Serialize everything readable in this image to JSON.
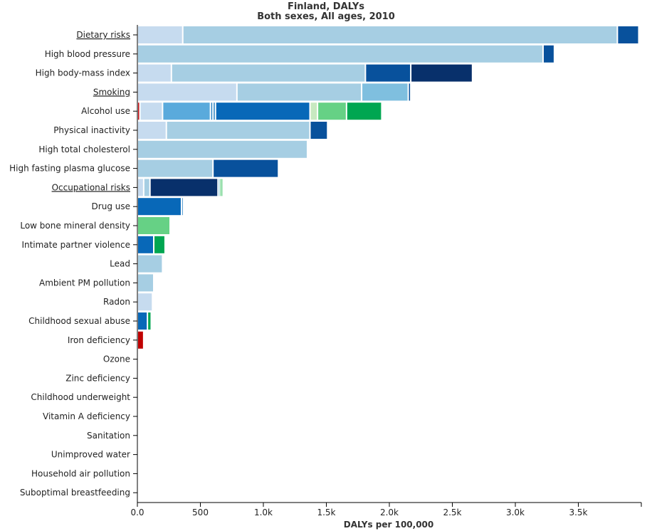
{
  "chart_data": {
    "type": "bar",
    "orientation": "horizontal",
    "stacked": true,
    "title": "Finland, DALYs",
    "subtitle": "Both sexes, All ages, 2010",
    "xlabel": "DALYs per 100,000",
    "xlim": [
      0,
      4000
    ],
    "xticks": [
      "0.0",
      "500",
      "1.0k",
      "1.5k",
      "2.0k",
      "2.5k",
      "3.0k",
      "3.5k"
    ],
    "grid": false,
    "legend": "none",
    "categories": [
      {
        "label": "Dietary risks",
        "link": true,
        "segments": [
          [
            360,
            "#c6dbef"
          ],
          [
            3450,
            "#a6cee3"
          ],
          [
            170,
            "#08519c"
          ]
        ]
      },
      {
        "label": "High blood pressure",
        "link": false,
        "segments": [
          [
            3220,
            "#a6cee3"
          ],
          [
            90,
            "#08519c"
          ]
        ]
      },
      {
        "label": "High body-mass index",
        "link": false,
        "segments": [
          [
            270,
            "#c6dbef"
          ],
          [
            1540,
            "#a6cee3"
          ],
          [
            360,
            "#08519c"
          ],
          [
            490,
            "#08306b"
          ]
        ]
      },
      {
        "label": "Smoking",
        "link": true,
        "segments": [
          [
            790,
            "#c6dbef"
          ],
          [
            990,
            "#a6cee3"
          ],
          [
            370,
            "#7fbfdf"
          ],
          [
            20,
            "#08519c"
          ]
        ]
      },
      {
        "label": "Alcohol use",
        "link": false,
        "segments": [
          [
            20,
            "#cb181d"
          ],
          [
            180,
            "#c6dbef"
          ],
          [
            380,
            "#5aaadc"
          ],
          [
            20,
            "#2b83c3"
          ],
          [
            20,
            "#2b83c3"
          ],
          [
            750,
            "#0868b8"
          ],
          [
            60,
            "#c7e9c0"
          ],
          [
            230,
            "#66d185"
          ],
          [
            280,
            "#00a651"
          ]
        ]
      },
      {
        "label": "Physical inactivity",
        "link": false,
        "segments": [
          [
            230,
            "#c6dbef"
          ],
          [
            1140,
            "#a6cee3"
          ],
          [
            140,
            "#08519c"
          ]
        ]
      },
      {
        "label": "High total cholesterol",
        "link": false,
        "segments": [
          [
            1350,
            "#a6cee3"
          ]
        ]
      },
      {
        "label": "High fasting plasma glucose",
        "link": false,
        "segments": [
          [
            600,
            "#a6cee3"
          ],
          [
            520,
            "#08519c"
          ]
        ]
      },
      {
        "label": "Occupational risks",
        "link": true,
        "segments": [
          [
            50,
            "#c6dbef"
          ],
          [
            50,
            "#a6cee3"
          ],
          [
            540,
            "#08306b"
          ],
          [
            10,
            "#7fbfdf"
          ],
          [
            10,
            "#66d185"
          ],
          [
            20,
            "#66d185"
          ]
        ]
      },
      {
        "label": "Drug use",
        "link": false,
        "segments": [
          [
            350,
            "#0868b8"
          ],
          [
            10,
            "#2b83c3"
          ]
        ]
      },
      {
        "label": "Low bone mineral density",
        "link": false,
        "segments": [
          [
            260,
            "#66d185"
          ]
        ]
      },
      {
        "label": "Intimate partner violence",
        "link": false,
        "segments": [
          [
            130,
            "#0868b8"
          ],
          [
            90,
            "#00a651"
          ]
        ]
      },
      {
        "label": "Lead",
        "link": false,
        "segments": [
          [
            200,
            "#a6cee3"
          ]
        ]
      },
      {
        "label": "Ambient PM pollution",
        "link": false,
        "segments": [
          [
            130,
            "#a6cee3"
          ]
        ]
      },
      {
        "label": "Radon",
        "link": false,
        "segments": [
          [
            120,
            "#c6dbef"
          ]
        ]
      },
      {
        "label": "Childhood sexual abuse",
        "link": false,
        "segments": [
          [
            80,
            "#0868b8"
          ],
          [
            30,
            "#00a651"
          ]
        ]
      },
      {
        "label": "Iron deficiency",
        "link": false,
        "segments": [
          [
            50,
            "#c00000"
          ]
        ]
      },
      {
        "label": "Ozone",
        "link": false,
        "segments": []
      },
      {
        "label": "Zinc deficiency",
        "link": false,
        "segments": []
      },
      {
        "label": "Childhood underweight",
        "link": false,
        "segments": []
      },
      {
        "label": "Vitamin A deficiency",
        "link": false,
        "segments": []
      },
      {
        "label": "Sanitation",
        "link": false,
        "segments": []
      },
      {
        "label": "Unimproved water",
        "link": false,
        "segments": []
      },
      {
        "label": "Household air pollution",
        "link": false,
        "segments": []
      },
      {
        "label": "Suboptimal breastfeeding",
        "link": false,
        "segments": []
      }
    ]
  }
}
